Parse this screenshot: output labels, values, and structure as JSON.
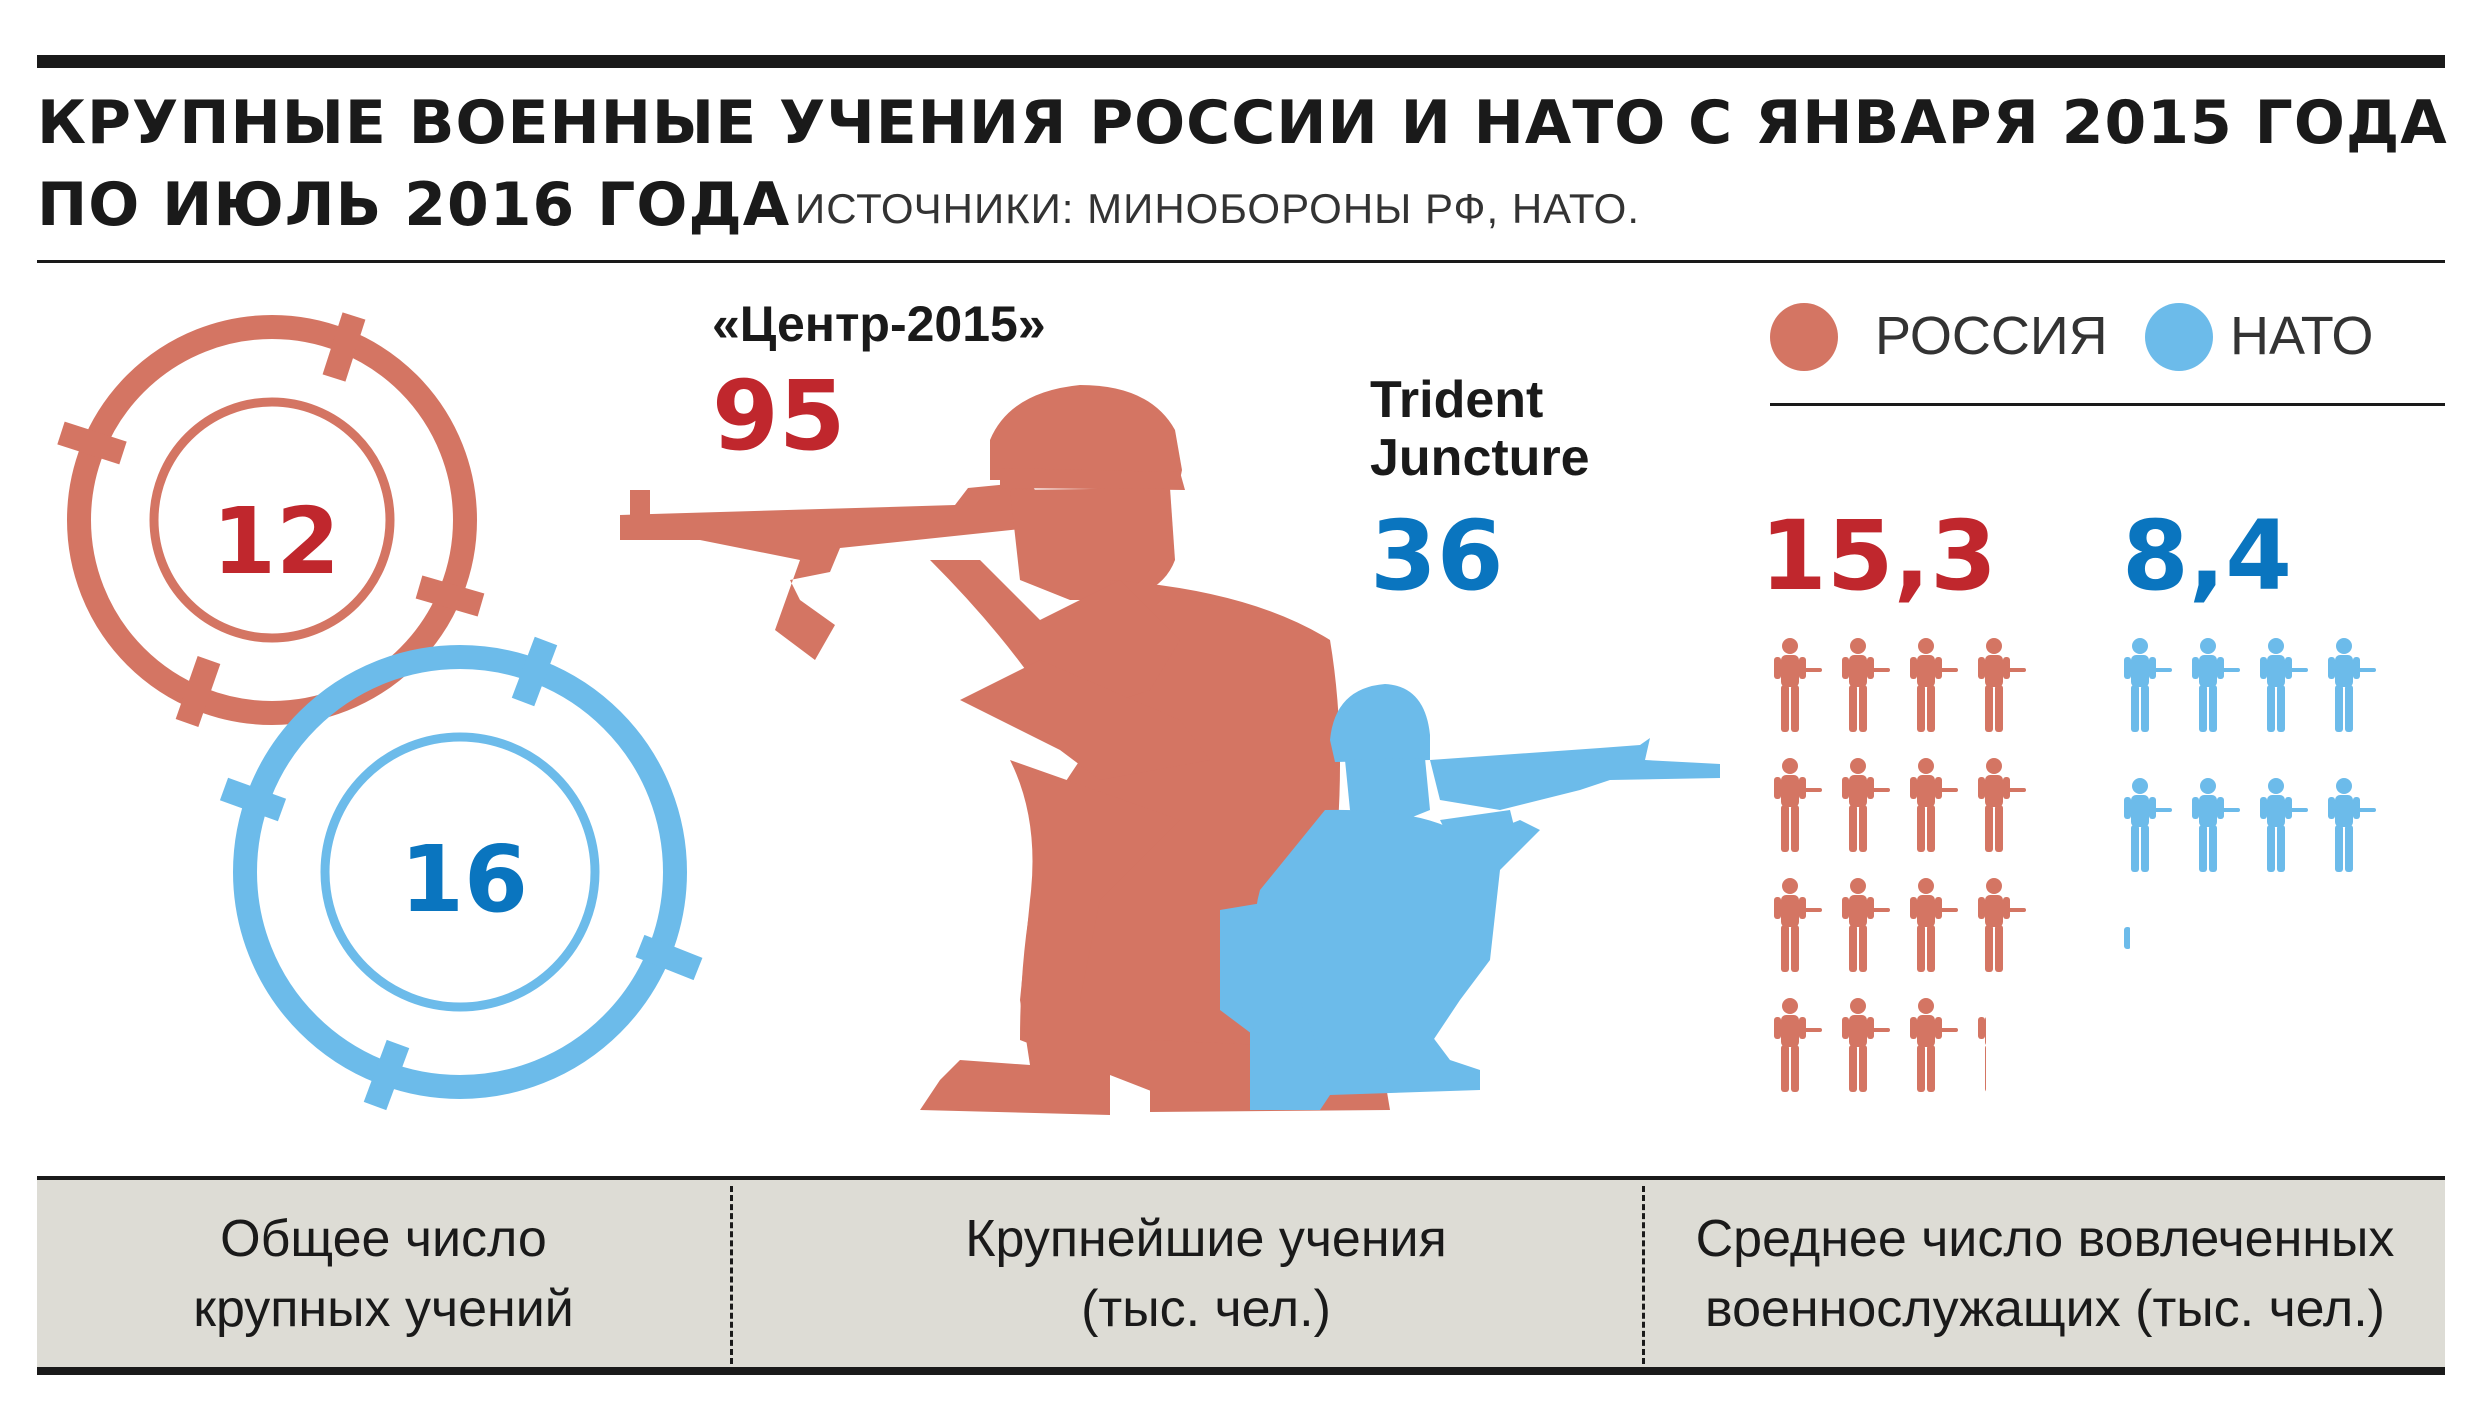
{
  "header": {
    "title_line1": "КРУПНЫЕ ВОЕННЫЕ УЧЕНИЯ РОССИИ И НАТО С ЯНВАРЯ 2015 ГОДА",
    "title_line2": "ПО ИЮЛЬ 2016 ГОДА",
    "source": "ИСТОЧНИКИ: МИНОБОРОНЫ РФ, НАТО."
  },
  "legend": [
    {
      "name": "РОССИЯ",
      "color": "#d47563"
    },
    {
      "name": "НАТО",
      "color": "#6cbbea"
    }
  ],
  "colors": {
    "russia_text": "#c0272d",
    "nato_text": "#0a75bf",
    "russia_fill": "#d47563",
    "nato_fill": "#6cbbea"
  },
  "chart_data": [
    {
      "type": "pictogram",
      "category": "Общее число крупных учений",
      "series": [
        {
          "name": "РОССИЯ",
          "value": 12
        },
        {
          "name": "НАТО",
          "value": 16
        }
      ]
    },
    {
      "type": "pictogram",
      "category": "Крупнейшие учения (тыс. чел.)",
      "series": [
        {
          "name": "РОССИЯ",
          "exercise": "«Центр-2015»",
          "value": 95
        },
        {
          "name": "НАТО",
          "exercise": "Trident Juncture",
          "value": 36
        }
      ]
    },
    {
      "type": "pictogram",
      "category": "Среднее число вовлеченных военнослужащих (тыс. чел.)",
      "series": [
        {
          "name": "РОССИЯ",
          "value": 15.3
        },
        {
          "name": "НАТО",
          "value": 8.4
        }
      ]
    }
  ],
  "display": {
    "russia_count": "12",
    "nato_count": "16",
    "russia_largest_name": "«Центр-2015»",
    "russia_largest_value": "95",
    "nato_largest_name_line1": "Trident",
    "nato_largest_name_line2": "Juncture",
    "nato_largest_value": "36",
    "russia_avg": "15,3",
    "nato_avg": "8,4"
  },
  "footer": {
    "col1_line1": "Общее число",
    "col1_line2": "крупных учений",
    "col2_line1": "Крупнейшие учения",
    "col2_line2": "(тыс. чел.)",
    "col3_line1": "Среднее число вовлеченных",
    "col3_line2": "военнослужащих (тыс. чел.)"
  }
}
